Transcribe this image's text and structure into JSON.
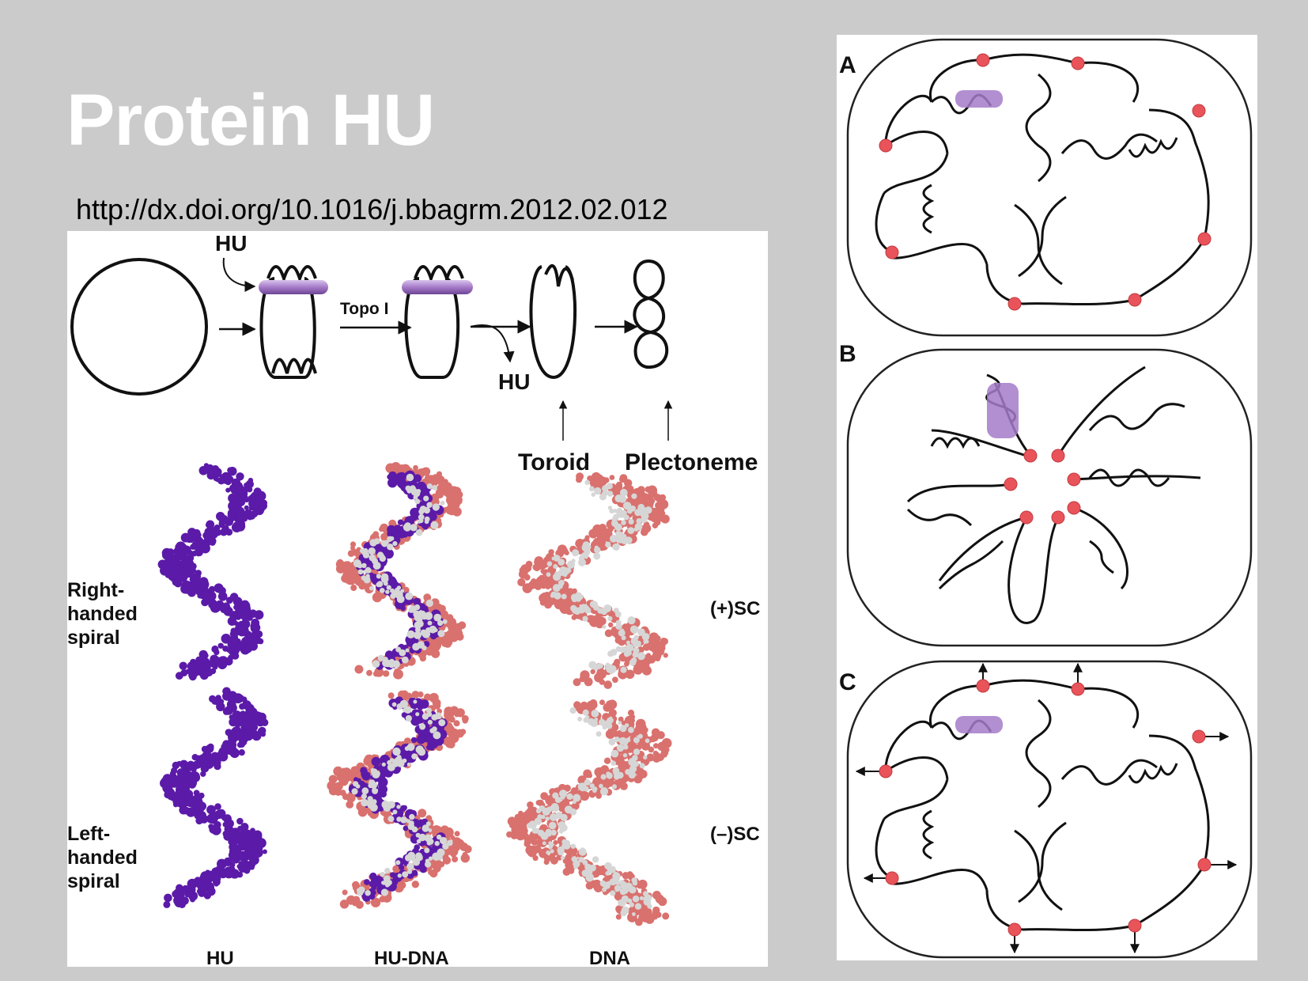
{
  "slide": {
    "title": "Protein HU",
    "source_link": "http://dx.doi.org/10.1016/j.bbagrm.2012.02.012"
  },
  "left_figure": {
    "labels": {
      "hu_top": "HU",
      "topo": "Topo I",
      "hu_release": "HU",
      "toroid": "Toroid",
      "plectoneme": "Plectoneme",
      "right_handed": [
        "Right-",
        "handed",
        "spiral"
      ],
      "left_handed": [
        "Left-",
        "handed",
        "spiral"
      ],
      "pos_sc": "(+)SC",
      "neg_sc": "(–)SC",
      "col_hu": "HU",
      "col_hudna": "HU-DNA",
      "col_dna": "DNA"
    }
  },
  "right_figure": {
    "panels": [
      {
        "letter": "A"
      },
      {
        "letter": "B"
      },
      {
        "letter": "C"
      }
    ]
  },
  "colors": {
    "background": "#cbcbcb",
    "title": "#ffffff",
    "hu_purple": "#5b1aa8",
    "dna_pink": "#d9716e",
    "node_red": "#e8545a",
    "hu_cylinder": "#a57bc9"
  }
}
